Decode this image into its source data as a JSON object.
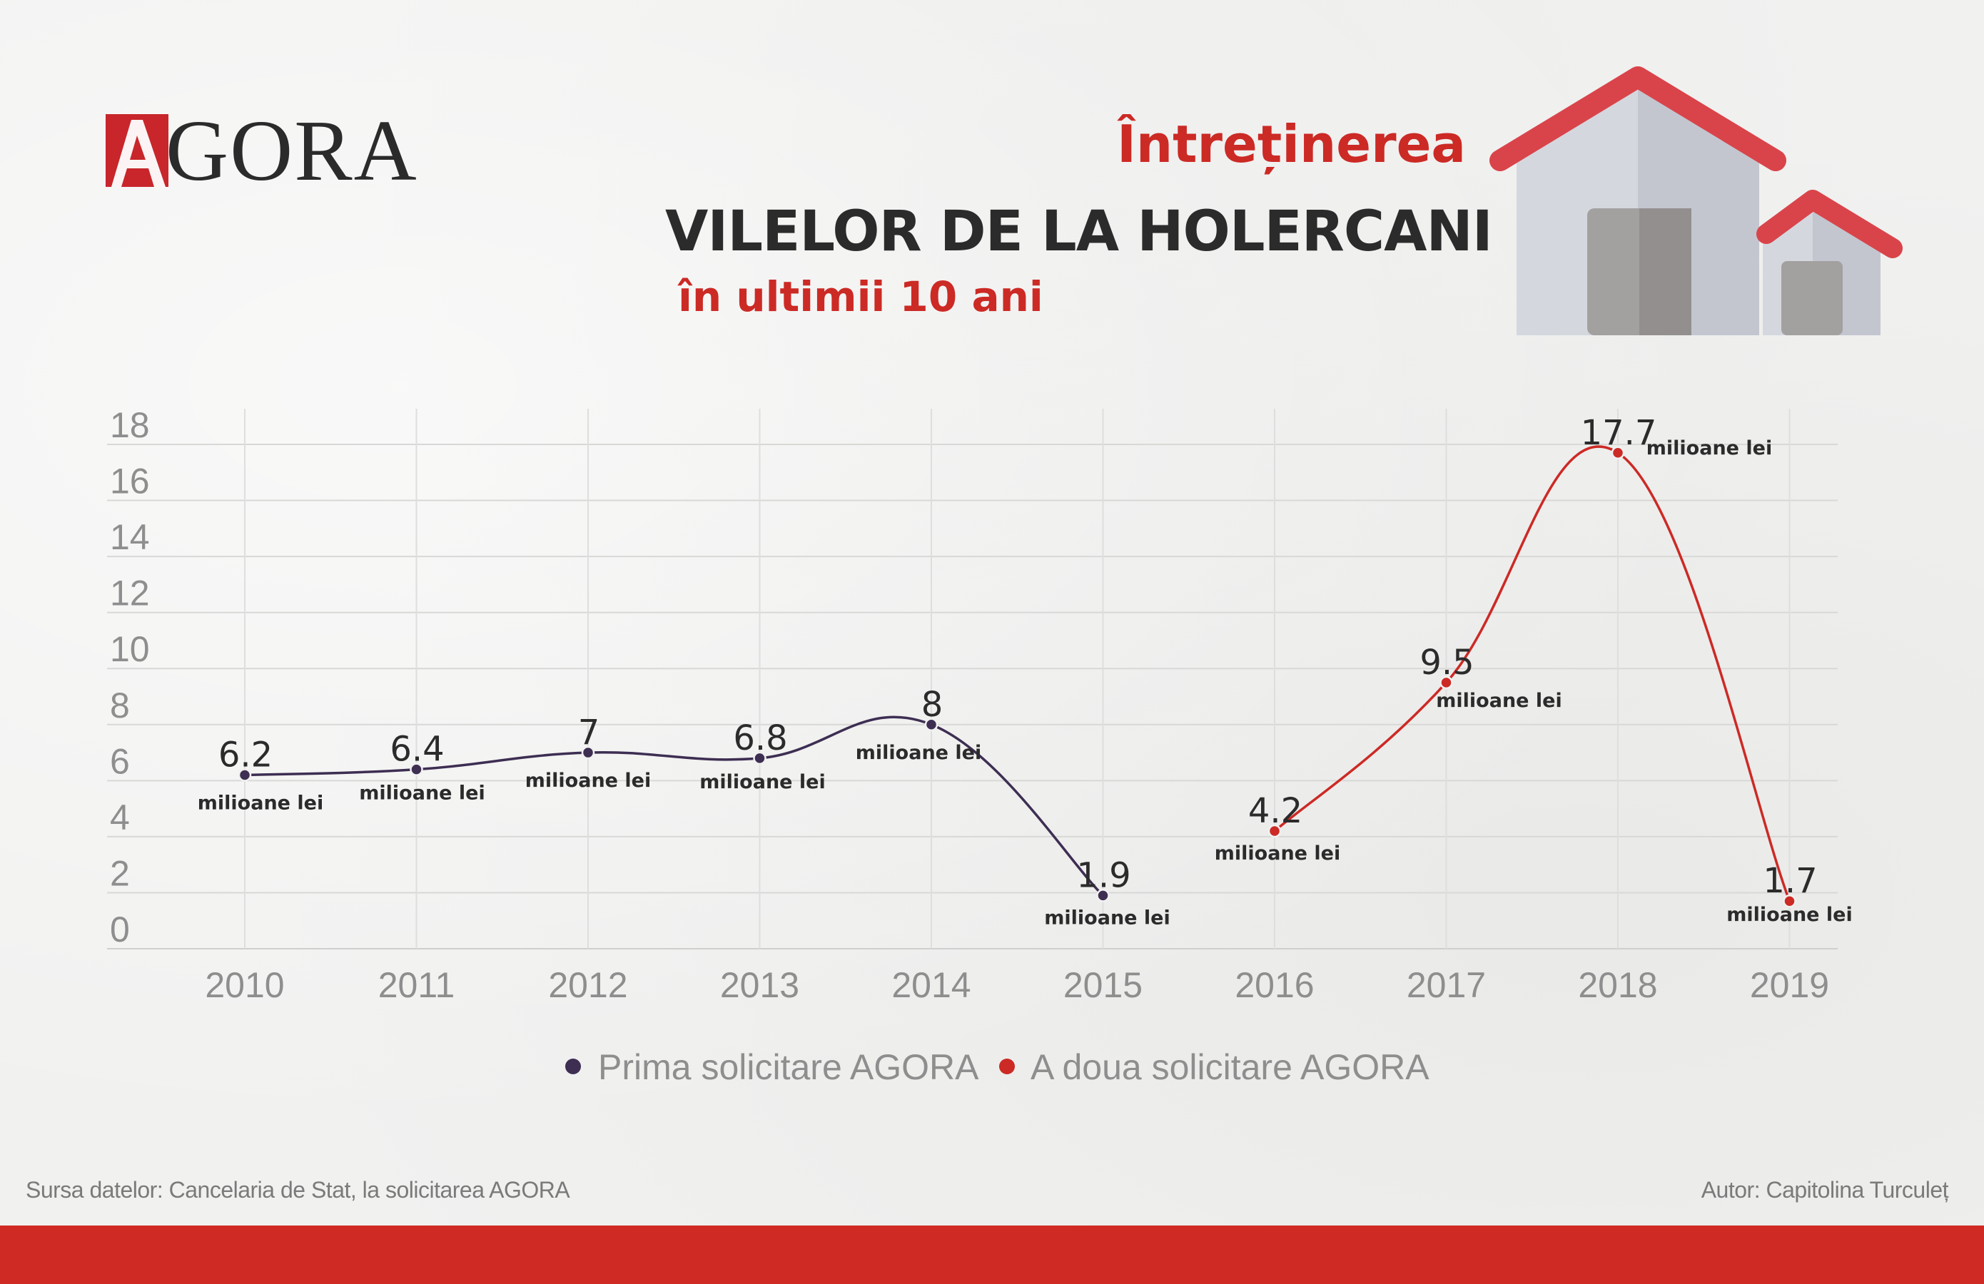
{
  "logo": {
    "letter": "A",
    "text": "GORA"
  },
  "title": {
    "line1": "Întreținerea",
    "line2": "VILELOR DE LA HOLERCANI",
    "line3": "în ultimii 10 ani"
  },
  "colors": {
    "accent_red": "#cc2a25",
    "series1": "#3d2e52",
    "series2": "#cc2a25",
    "bar": "#cf2b24"
  },
  "chart_data": {
    "type": "line",
    "title": "Întreținerea VILELOR DE LA HOLERCANI în ultimii 10 ani",
    "xlabel": "",
    "ylabel": "",
    "ylim": [
      0,
      18
    ],
    "yticks": [
      "0",
      "2",
      "4",
      "6",
      "8",
      "10",
      "12",
      "14",
      "16",
      "18"
    ],
    "categories": [
      "2010",
      "2011",
      "2012",
      "2013",
      "2014",
      "2015",
      "2016",
      "2017",
      "2018",
      "2019"
    ],
    "unit_label": "milioane lei",
    "legend_position": "bottom",
    "series": [
      {
        "name": "Prima solicitare AGORA",
        "color": "#3d2e52",
        "points": [
          {
            "x": "2010",
            "y": 6.2,
            "label": "6.2"
          },
          {
            "x": "2011",
            "y": 6.4,
            "label": "6.4"
          },
          {
            "x": "2012",
            "y": 7,
            "label": "7"
          },
          {
            "x": "2013",
            "y": 6.8,
            "label": "6.8"
          },
          {
            "x": "2014",
            "y": 8,
            "label": "8"
          },
          {
            "x": "2015",
            "y": 1.9,
            "label": "1.9"
          }
        ]
      },
      {
        "name": "A doua solicitare AGORA",
        "color": "#cc2a25",
        "points": [
          {
            "x": "2016",
            "y": 4.2,
            "label": "4.2"
          },
          {
            "x": "2017",
            "y": 9.5,
            "label": "9.5"
          },
          {
            "x": "2018",
            "y": 17.7,
            "label": "17.7"
          },
          {
            "x": "2019",
            "y": 1.7,
            "label": "1.7"
          }
        ]
      }
    ]
  },
  "footer": {
    "source": "Sursa datelor: Cancelaria de Stat, la solicitarea AGORA",
    "author": "Autor: Capitolina Turculeț"
  }
}
